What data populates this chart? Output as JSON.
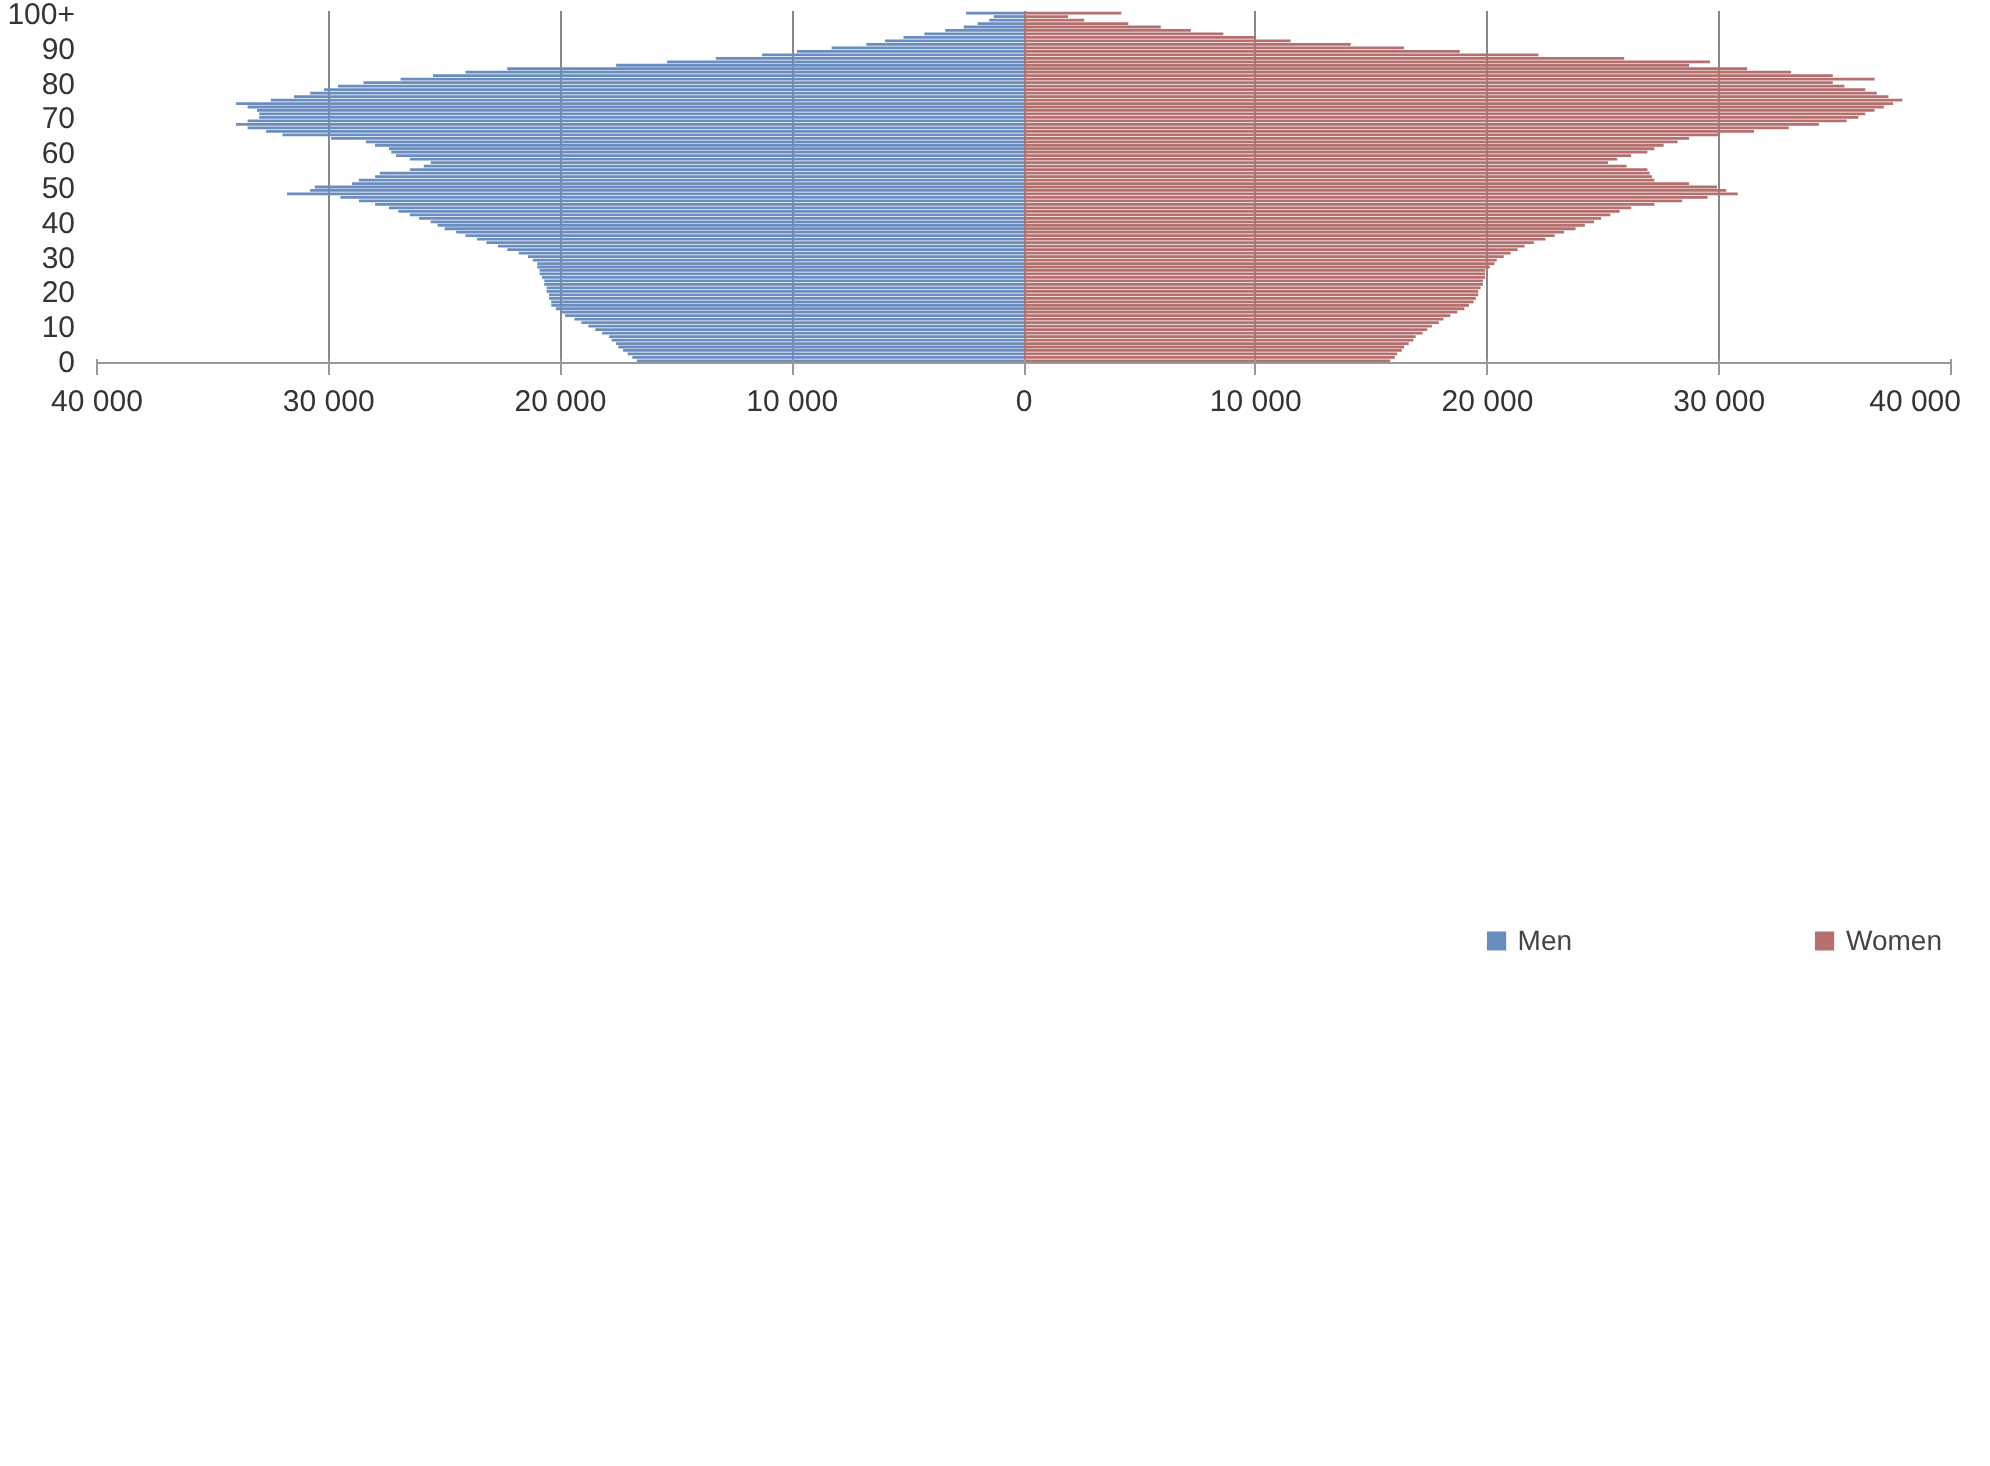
{
  "chart_data": {
    "type": "bar",
    "orientation": "horizontal",
    "categories": [
      "100+",
      null,
      null,
      null,
      null,
      null,
      null,
      null,
      null,
      null,
      "90",
      null,
      null,
      null,
      null,
      null,
      null,
      null,
      null,
      null,
      "80",
      null,
      null,
      null,
      null,
      null,
      null,
      null,
      null,
      null,
      "70",
      null,
      null,
      null,
      null,
      null,
      null,
      null,
      null,
      null,
      "60",
      null,
      null,
      null,
      null,
      null,
      null,
      null,
      null,
      null,
      "50",
      null,
      null,
      null,
      null,
      null,
      null,
      null,
      null,
      null,
      "40",
      null,
      null,
      null,
      null,
      null,
      null,
      null,
      null,
      null,
      "30",
      null,
      null,
      null,
      null,
      null,
      null,
      null,
      null,
      null,
      "20",
      null,
      null,
      null,
      null,
      null,
      null,
      null,
      null,
      null,
      "10",
      null,
      null,
      null,
      null,
      null,
      null,
      null,
      null,
      null,
      "0"
    ],
    "series": [
      {
        "name": "Men",
        "color": "#6a8dbf",
        "values": [
          -2500,
          -1300,
          -1500,
          -2000,
          -2600,
          -3400,
          -4300,
          -5200,
          -6000,
          -6800,
          -8300,
          -9800,
          -11300,
          -13300,
          -15400,
          -17600,
          -22300,
          -24100,
          -25500,
          -26900,
          -28500,
          -29600,
          -30200,
          -30800,
          -31500,
          -32500,
          -34000,
          -33500,
          -33100,
          -33000,
          -33000,
          -33500,
          -34000,
          -33500,
          -32700,
          -32000,
          -29900,
          -28400,
          -28000,
          -27400,
          -27300,
          -27100,
          -26500,
          -25600,
          -25900,
          -26500,
          -27800,
          -28000,
          -28700,
          -29000,
          -30600,
          -30800,
          -31800,
          -29500,
          -28700,
          -28000,
          -27400,
          -27000,
          -26500,
          -26100,
          -25600,
          -25300,
          -25000,
          -24500,
          -24100,
          -23600,
          -23200,
          -22700,
          -22300,
          -21800,
          -21400,
          -21200,
          -21000,
          -21000,
          -20900,
          -20900,
          -20800,
          -20700,
          -20700,
          -20600,
          -20600,
          -20500,
          -20500,
          -20400,
          -20400,
          -20200,
          -20000,
          -19800,
          -19400,
          -19100,
          -18800,
          -18500,
          -18200,
          -17900,
          -17800,
          -17600,
          -17500,
          -17300,
          -17100,
          -16900,
          -16700
        ]
      },
      {
        "name": "Women",
        "color": "#b56f6e",
        "values": [
          4200,
          1900,
          2600,
          4500,
          5900,
          7200,
          8600,
          10000,
          11500,
          14100,
          16400,
          18800,
          22200,
          25900,
          29600,
          28700,
          31200,
          33100,
          34900,
          36700,
          34900,
          35400,
          36300,
          36800,
          37300,
          37900,
          37500,
          37100,
          36700,
          36300,
          36000,
          35500,
          34300,
          33000,
          31500,
          30000,
          28700,
          28200,
          27600,
          27200,
          26900,
          26200,
          25600,
          25200,
          26000,
          26900,
          27000,
          27100,
          27200,
          28700,
          29900,
          30300,
          30800,
          29500,
          28400,
          27200,
          26200,
          25700,
          25300,
          24900,
          24600,
          24200,
          23800,
          23300,
          22900,
          22500,
          22000,
          21600,
          21300,
          21000,
          20700,
          20400,
          20300,
          20100,
          19900,
          19900,
          19900,
          19800,
          19800,
          19700,
          19600,
          19600,
          19500,
          19400,
          19200,
          19000,
          18700,
          18400,
          18100,
          17900,
          17600,
          17400,
          17200,
          16900,
          16800,
          16600,
          16400,
          16300,
          16100,
          16000,
          15800
        ]
      }
    ],
    "xlim": [
      -40000,
      40000
    ],
    "xticks": [
      {
        "value": -40000,
        "label": "40 000"
      },
      {
        "value": -30000,
        "label": "30 000"
      },
      {
        "value": -20000,
        "label": "20 000"
      },
      {
        "value": -10000,
        "label": "10 000"
      },
      0,
      {
        "value": 10000,
        "label": "10 000"
      },
      {
        "value": 20000,
        "label": "20 000"
      },
      {
        "value": 30000,
        "label": "30 000"
      },
      {
        "value": 40000,
        "label": "40 000"
      }
    ],
    "grid": "x",
    "legend": "bottom"
  }
}
